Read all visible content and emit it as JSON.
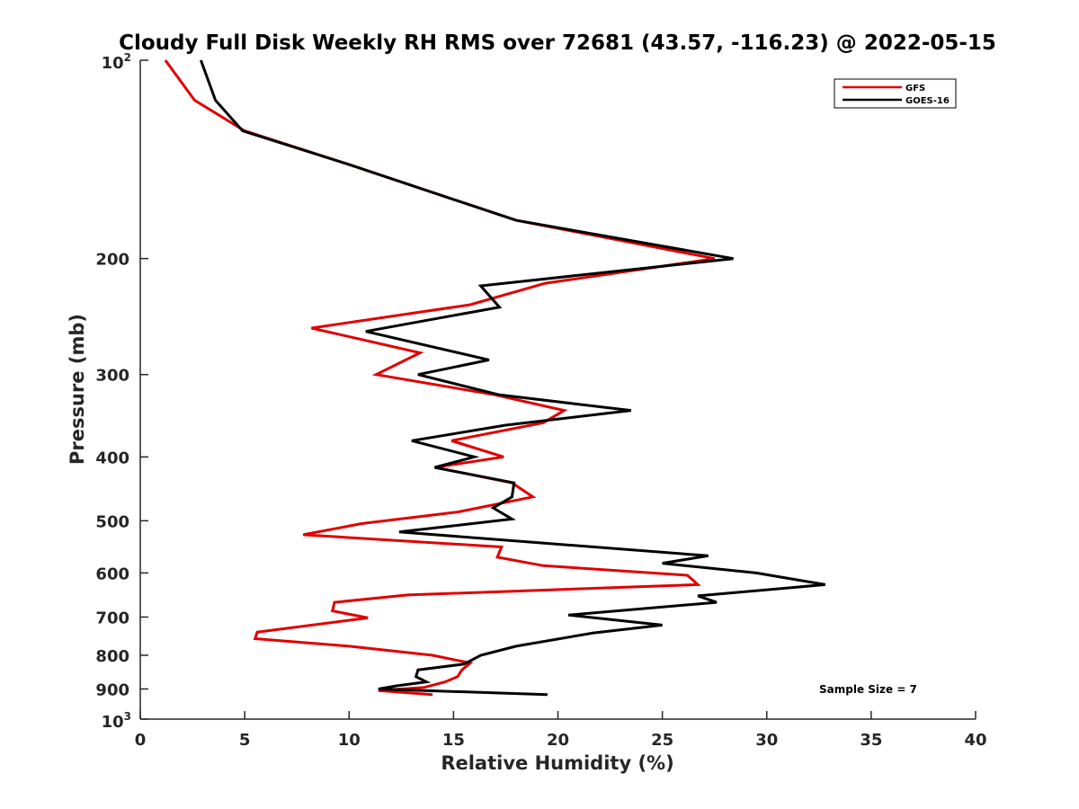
{
  "chart_data": {
    "type": "line",
    "title": "Cloudy Full Disk Weekly RH RMS over 72681 (43.57, -116.23) @ 2022-05-15",
    "xlabel": "Relative Humidity (%)",
    "ylabel": "Pressure (mb)",
    "xlim": [
      0,
      40
    ],
    "ylim": [
      100,
      1000
    ],
    "y_scale": "log",
    "y_reversed": true,
    "grid": false,
    "legend_position": "top-right",
    "x_ticks": [
      "0",
      "5",
      "10",
      "15",
      "20",
      "25",
      "30",
      "35",
      "40"
    ],
    "y_ticks": [
      {
        "value": 100,
        "base": "10",
        "exp": "2"
      },
      {
        "value": 200,
        "label": "200"
      },
      {
        "value": 300,
        "label": "300"
      },
      {
        "value": 400,
        "label": "400"
      },
      {
        "value": 500,
        "label": "500"
      },
      {
        "value": 600,
        "label": "600"
      },
      {
        "value": 700,
        "label": "700"
      },
      {
        "value": 800,
        "label": "800"
      },
      {
        "value": 900,
        "label": "900"
      },
      {
        "value": 1000,
        "base": "10",
        "exp": "3"
      }
    ],
    "annotation": "Sample Size = 7",
    "series": [
      {
        "name": "GFS",
        "color": "#e00000",
        "points": [
          [
            1.2,
            100
          ],
          [
            2.6,
            115
          ],
          [
            5.0,
            128
          ],
          [
            10.0,
            144
          ],
          [
            18.0,
            175
          ],
          [
            27.5,
            200
          ],
          [
            19.4,
            218
          ],
          [
            15.8,
            235
          ],
          [
            8.2,
            255
          ],
          [
            13.4,
            278
          ],
          [
            11.3,
            300
          ],
          [
            17.0,
            322
          ],
          [
            20.3,
            340
          ],
          [
            19.3,
            355
          ],
          [
            14.9,
            378
          ],
          [
            17.4,
            400
          ],
          [
            14.1,
            415
          ],
          [
            17.8,
            438
          ],
          [
            18.8,
            460
          ],
          [
            15.2,
            485
          ],
          [
            10.6,
            505
          ],
          [
            7.8,
            525
          ],
          [
            17.3,
            548
          ],
          [
            17.1,
            568
          ],
          [
            19.3,
            585
          ],
          [
            26.2,
            605
          ],
          [
            26.7,
            625
          ],
          [
            12.8,
            648
          ],
          [
            9.3,
            665
          ],
          [
            9.2,
            685
          ],
          [
            10.9,
            702
          ],
          [
            5.6,
            738
          ],
          [
            5.5,
            755
          ],
          [
            10.0,
            775
          ],
          [
            14.0,
            800
          ],
          [
            15.8,
            822
          ],
          [
            15.4,
            842
          ],
          [
            15.2,
            862
          ],
          [
            14.6,
            878
          ],
          [
            13.6,
            895
          ],
          [
            11.4,
            905
          ],
          [
            14.0,
            918
          ]
        ]
      },
      {
        "name": "GOES-16",
        "color": "#000000",
        "points": [
          [
            2.9,
            100
          ],
          [
            3.6,
            115
          ],
          [
            4.9,
            128
          ],
          [
            10.0,
            144
          ],
          [
            18.0,
            175
          ],
          [
            28.4,
            200
          ],
          [
            16.3,
            220
          ],
          [
            17.2,
            237
          ],
          [
            10.8,
            258
          ],
          [
            16.7,
            285
          ],
          [
            13.3,
            300
          ],
          [
            17.2,
            322
          ],
          [
            23.5,
            340
          ],
          [
            17.5,
            358
          ],
          [
            13.0,
            378
          ],
          [
            16.0,
            400
          ],
          [
            14.1,
            415
          ],
          [
            17.9,
            438
          ],
          [
            17.8,
            460
          ],
          [
            16.9,
            478
          ],
          [
            17.8,
            497
          ],
          [
            12.4,
            520
          ],
          [
            27.2,
            565
          ],
          [
            25.0,
            580
          ],
          [
            29.5,
            600
          ],
          [
            32.8,
            625
          ],
          [
            26.7,
            650
          ],
          [
            27.6,
            665
          ],
          [
            20.5,
            695
          ],
          [
            25.0,
            720
          ],
          [
            21.7,
            740
          ],
          [
            18.0,
            775
          ],
          [
            16.3,
            800
          ],
          [
            15.5,
            825
          ],
          [
            13.3,
            842
          ],
          [
            13.2,
            862
          ],
          [
            13.7,
            878
          ],
          [
            12.3,
            890
          ],
          [
            11.4,
            900
          ],
          [
            19.5,
            918
          ]
        ]
      }
    ]
  }
}
